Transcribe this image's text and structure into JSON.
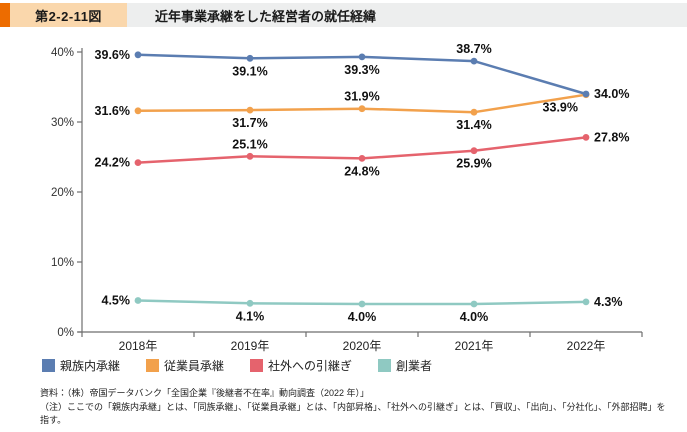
{
  "header": {
    "figure_label": "第2-2-11図",
    "title": "近年事業承継をした経営者の就任経緯",
    "accent_color": "#ED6C00",
    "badge_bg": "#FAD7AC",
    "strip_bg": "#EDEEEE"
  },
  "chart_data": {
    "type": "line",
    "title": "近年事業承継をした経営者の就任経緯",
    "categories": [
      "2018年",
      "2019年",
      "2020年",
      "2021年",
      "2022年"
    ],
    "series": [
      {
        "name": "親族内承継",
        "color": "#5B7DB1",
        "values": [
          39.6,
          39.1,
          39.3,
          38.7,
          34.0
        ],
        "label_pos": [
          "left",
          "below",
          "below",
          "above",
          "right"
        ]
      },
      {
        "name": "従業員承継",
        "color": "#F2A14C",
        "values": [
          31.6,
          31.7,
          31.9,
          31.4,
          33.9
        ],
        "label_pos": [
          "left",
          "below",
          "above",
          "below",
          "below-left"
        ]
      },
      {
        "name": "社外への引継ぎ",
        "color": "#E5636D",
        "values": [
          24.2,
          25.1,
          24.8,
          25.9,
          27.8
        ],
        "label_pos": [
          "left",
          "above",
          "below",
          "below",
          "right"
        ]
      },
      {
        "name": "創業者",
        "color": "#8FC9C2",
        "values": [
          4.5,
          4.1,
          4.0,
          4.0,
          4.3
        ],
        "label_pos": [
          "left",
          "below",
          "below",
          "below",
          "right"
        ]
      }
    ],
    "ylabel": "",
    "xlabel": "",
    "ylim": [
      0,
      40
    ],
    "y_ticks": [
      "0%",
      "10%",
      "20%",
      "30%",
      "40%"
    ],
    "grid": false,
    "legend_position": "bottom",
    "value_suffix": "%"
  },
  "notes": {
    "source": "資料：（株）帝国データバンク「全国企業『後継者不在率』動向調査（2022 年）」",
    "note": "（注）ここでの「親族内承継」とは、「同族承継」、「従業員承継」とは、「内部昇格」、「社外への引継ぎ」とは、「買収」、「出向」、「分社化」、「外部招聘」を指す。"
  }
}
